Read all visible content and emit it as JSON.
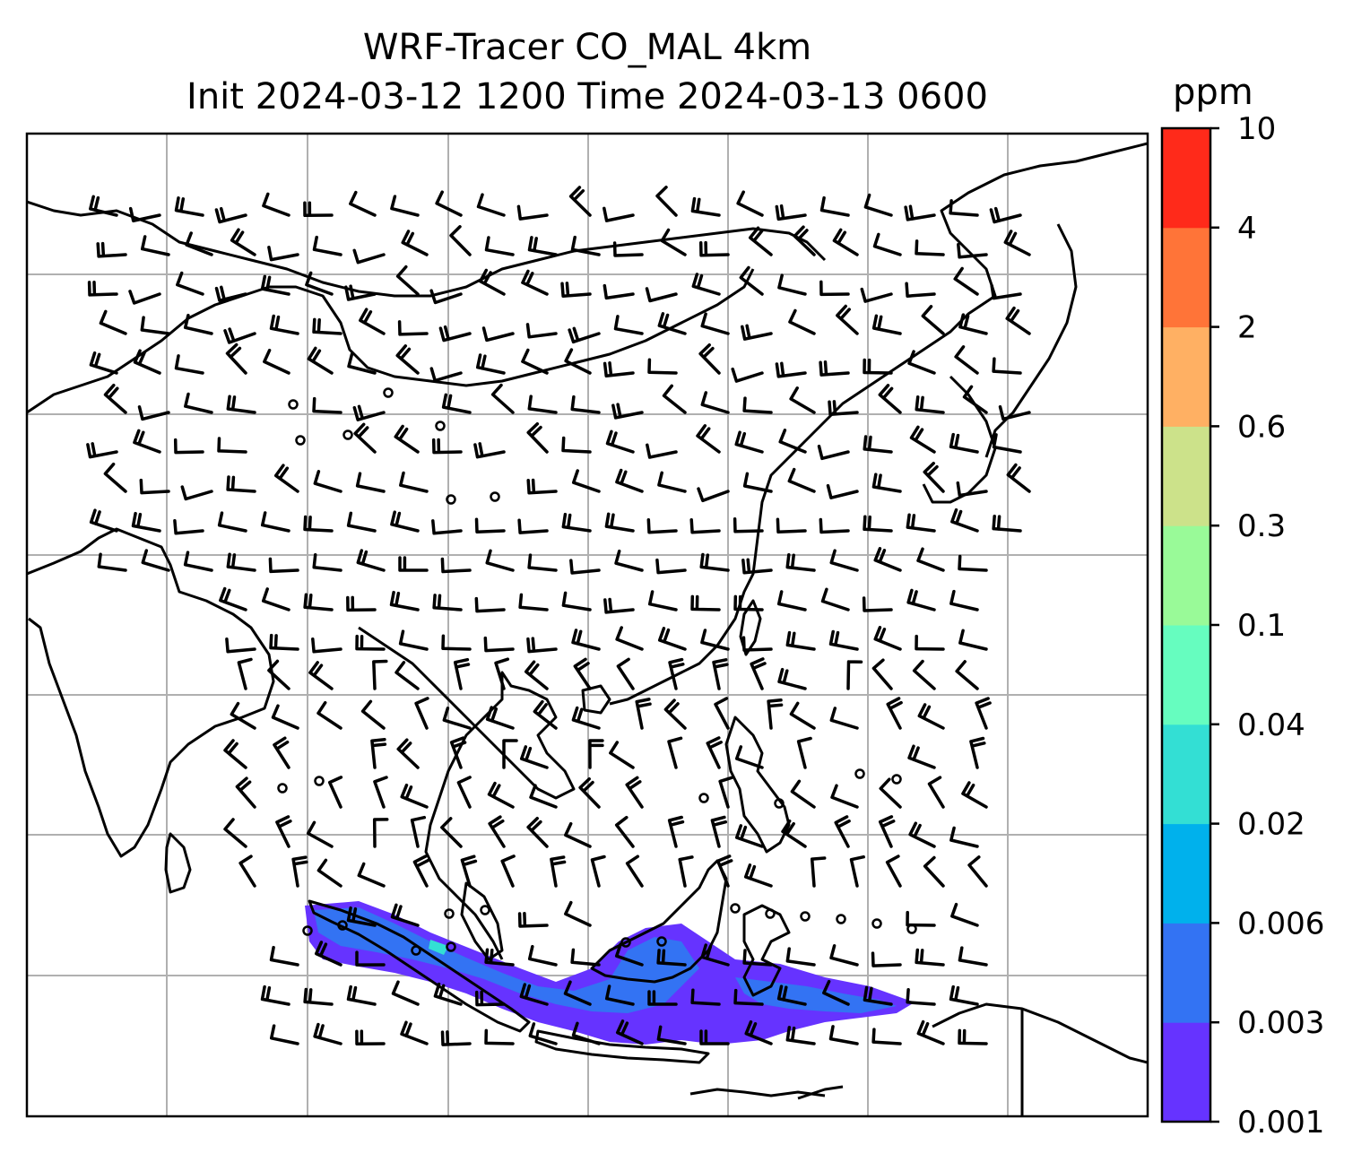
{
  "title": {
    "line1": "WRF-Tracer CO_MAL 4km",
    "line2": "Init 2024-03-12 1200 Time 2024-03-13 0600"
  },
  "colorbar": {
    "unit": "ppm",
    "levels": [
      "0.001",
      "0.003",
      "0.006",
      "0.02",
      "0.04",
      "0.1",
      "0.3",
      "0.6",
      "2",
      "4",
      "10"
    ],
    "colors": [
      "#6633ff",
      "#3373f3",
      "#00b1ec",
      "#33dfd4",
      "#66fdbf",
      "#99fa98",
      "#cce28a",
      "#ffb063",
      "#ff7438",
      "#ff2a1a"
    ]
  },
  "map": {
    "projection": "regional WRF domain, Southeast/East Asia",
    "gridlines": true,
    "coastline_color": "#000000",
    "plume_colors": {
      "low": "#6633ff",
      "mid": "#3373f3",
      "high": "#33dfd4"
    },
    "wind_barbs": "black barbs, calm winds shown as circles",
    "icons": [
      "wind-barb-icon",
      "calm-circle-icon"
    ]
  }
}
